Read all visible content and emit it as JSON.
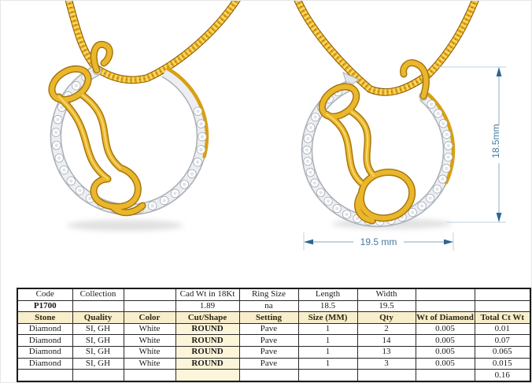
{
  "annotations": {
    "height_label": "18.5mm",
    "width_label": "19.5 mm"
  },
  "colors": {
    "gold": "#eab62b",
    "gold_dark": "#a3730a",
    "silver_band": "#eceef1",
    "diamond": "#ffffff",
    "dimension_accent": "#2e6590",
    "dimension_line": "#9fb9cb",
    "table_header_bg": "#f8eecb",
    "table_highlight_bg": "#fdf5d9",
    "table_border": "#1a1a1a"
  },
  "icons": {
    "left_view": "pendant-perspective-render",
    "right_view": "pendant-front-render"
  },
  "spec_table": {
    "info_header": [
      "Code",
      "Collection",
      "",
      "Cad Wt in 18Kt",
      "Ring Size",
      "Length",
      "Width",
      "",
      ""
    ],
    "info_values": [
      "P1700",
      "",
      "",
      "1.89",
      "na",
      "18.5",
      "19.5",
      "",
      ""
    ],
    "stone_header": [
      "Stone",
      "Quality",
      "Color",
      "Cut/Shape",
      "Setting",
      "Size (MM)",
      "Qty",
      "Wt of Diamond",
      "Total Ct Wt"
    ],
    "stone_rows": [
      [
        "Diamond",
        "SI, GH",
        "White",
        "ROUND",
        "Pave",
        "1",
        "2",
        "0.005",
        "0.01"
      ],
      [
        "Diamond",
        "SI, GH",
        "White",
        "ROUND",
        "Pave",
        "1",
        "14",
        "0.005",
        "0.07"
      ],
      [
        "Diamond",
        "SI, GH",
        "White",
        "ROUND",
        "Pave",
        "1",
        "13",
        "0.005",
        "0.065"
      ],
      [
        "Diamond",
        "SI, GH",
        "White",
        "ROUND",
        "Pave",
        "1",
        "3",
        "0.005",
        "0.015"
      ]
    ],
    "total_row": [
      "",
      "",
      "",
      "",
      "",
      "",
      "",
      "",
      "0.16"
    ]
  }
}
